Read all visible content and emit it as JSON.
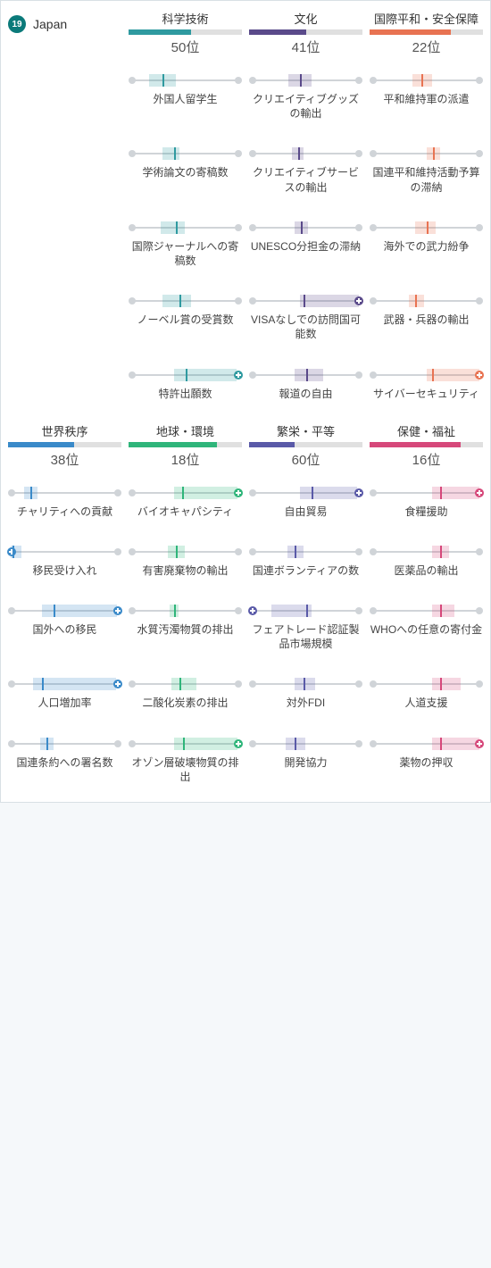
{
  "country": {
    "rank": "19",
    "name": "Japan",
    "badge_color": "#0b7a7a"
  },
  "rank_suffix": "位",
  "track": {
    "line_color": "#d0d4d8",
    "dot_color": "#d0d4d8"
  },
  "layout": {
    "columns": 4,
    "sections": 2
  },
  "categories": [
    {
      "id": "sci",
      "title": "科学技術",
      "rank": "50",
      "color": "#2f9aa0",
      "bar_start": 0.0,
      "bar_end": 0.55
    },
    {
      "id": "cul",
      "title": "文化",
      "rank": "41",
      "color": "#5a4a8a",
      "bar_start": 0.0,
      "bar_end": 0.5
    },
    {
      "id": "peace",
      "title": "国際平和・安全保障",
      "rank": "22",
      "color": "#e87352",
      "bar_start": 0.0,
      "bar_end": 0.72
    },
    {
      "id": "order",
      "title": "世界秩序",
      "rank": "38",
      "color": "#3a8ac9",
      "bar_start": 0.0,
      "bar_end": 0.58
    },
    {
      "id": "planet",
      "title": "地球・環境",
      "rank": "18",
      "color": "#2fb57a",
      "bar_start": 0.0,
      "bar_end": 0.78
    },
    {
      "id": "prosp",
      "title": "繁栄・平等",
      "rank": "60",
      "color": "#5a5aa8",
      "bar_start": 0.0,
      "bar_end": 0.4
    },
    {
      "id": "health",
      "title": "保健・福祉",
      "rank": "16",
      "color": "#d6487a",
      "bar_start": 0.0,
      "bar_end": 0.8
    }
  ],
  "sections": [
    {
      "header_first_cell": "country",
      "header_cats": [
        "sci",
        "cul",
        "peace"
      ],
      "rows": [
        [
          null,
          {
            "cat": "sci",
            "label": "外国人留学生",
            "band": [
              0.18,
              0.42
            ],
            "pos": 0.3
          },
          {
            "cat": "cul",
            "label": "クリエイティブグッズの輸出",
            "band": [
              0.35,
              0.55
            ],
            "pos": 0.45
          },
          {
            "cat": "peace",
            "label": "平和維持軍の派遣",
            "band": [
              0.38,
              0.55
            ],
            "pos": 0.46
          }
        ],
        [
          null,
          {
            "cat": "sci",
            "label": "学術論文の寄稿数",
            "band": [
              0.3,
              0.45
            ],
            "pos": 0.4
          },
          {
            "cat": "cul",
            "label": "クリエイティブサービスの輸出",
            "band": [
              0.38,
              0.48
            ],
            "pos": 0.43
          },
          {
            "cat": "peace",
            "label": "国連平和維持活動予算の滞納",
            "band": [
              0.5,
              0.62
            ],
            "pos": 0.56
          }
        ],
        [
          null,
          {
            "cat": "sci",
            "label": "国際ジャーナルへの寄稿数",
            "band": [
              0.28,
              0.5
            ],
            "pos": 0.42
          },
          {
            "cat": "cul",
            "label": "UNESCO分担金の滞納",
            "band": [
              0.4,
              0.52
            ],
            "pos": 0.46
          },
          {
            "cat": "peace",
            "label": "海外での武力紛争",
            "band": [
              0.4,
              0.58
            ],
            "pos": 0.5
          }
        ],
        [
          null,
          {
            "cat": "sci",
            "label": "ノーベル賞の受賞数",
            "band": [
              0.3,
              0.55
            ],
            "pos": 0.45
          },
          {
            "cat": "cul",
            "label": "VISAなしでの訪問国可能数",
            "band": [
              0.45,
              0.97
            ],
            "pos": 0.48,
            "plus_right": true
          },
          {
            "cat": "peace",
            "label": "武器・兵器の輸出",
            "band": [
              0.35,
              0.48
            ],
            "pos": 0.4
          }
        ],
        [
          null,
          {
            "cat": "sci",
            "label": "特許出願数",
            "band": [
              0.4,
              0.95
            ],
            "pos": 0.5,
            "plus_right": true
          },
          {
            "cat": "cul",
            "label": "報道の自由",
            "band": [
              0.4,
              0.65
            ],
            "pos": 0.5
          },
          {
            "cat": "peace",
            "label": "サイバーセキュリティ",
            "band": [
              0.5,
              0.97
            ],
            "pos": 0.55,
            "plus_right": true
          }
        ]
      ]
    },
    {
      "header_first_cell": "cat",
      "header_cats": [
        "order",
        "planet",
        "prosp",
        "health"
      ],
      "rows": [
        [
          {
            "cat": "order",
            "label": "チャリティへの貢献",
            "band": [
              0.14,
              0.26
            ],
            "pos": 0.2
          },
          {
            "cat": "planet",
            "label": "バイオキャパシティ",
            "band": [
              0.4,
              0.96
            ],
            "pos": 0.47,
            "plus_right": true
          },
          {
            "cat": "prosp",
            "label": "自由貿易",
            "band": [
              0.45,
              0.95
            ],
            "pos": 0.55,
            "plus_right": true
          },
          {
            "cat": "health",
            "label": "食糧援助",
            "band": [
              0.55,
              0.97
            ],
            "pos": 0.62,
            "plus_right": true
          }
        ],
        [
          {
            "cat": "order",
            "label": "移民受け入れ",
            "band": [
              0.02,
              0.12
            ],
            "pos": 0.04,
            "plus_left": true
          },
          {
            "cat": "planet",
            "label": "有害廃棄物の輸出",
            "band": [
              0.35,
              0.5
            ],
            "pos": 0.42
          },
          {
            "cat": "prosp",
            "label": "国連ボランティアの数",
            "band": [
              0.34,
              0.48
            ],
            "pos": 0.4
          },
          {
            "cat": "health",
            "label": "医薬品の輸出",
            "band": [
              0.55,
              0.7
            ],
            "pos": 0.62
          }
        ],
        [
          {
            "cat": "order",
            "label": "国外への移民",
            "band": [
              0.3,
              0.96
            ],
            "pos": 0.4,
            "plus_right": true
          },
          {
            "cat": "planet",
            "label": "水質汚濁物質の排出",
            "band": [
              0.36,
              0.44
            ],
            "pos": 0.4
          },
          {
            "cat": "prosp",
            "label": "フェアトレード認証製品市場規模",
            "band": [
              0.2,
              0.55
            ],
            "pos": 0.5,
            "plus_left": true
          },
          {
            "cat": "health",
            "label": "WHOへの任意の寄付金",
            "band": [
              0.55,
              0.75
            ],
            "pos": 0.62
          }
        ],
        [
          {
            "cat": "order",
            "label": "人口増加率",
            "band": [
              0.22,
              0.95
            ],
            "pos": 0.3,
            "plus_right": true
          },
          {
            "cat": "planet",
            "label": "二酸化炭素の排出",
            "band": [
              0.38,
              0.6
            ],
            "pos": 0.45
          },
          {
            "cat": "prosp",
            "label": "対外FDI",
            "band": [
              0.4,
              0.58
            ],
            "pos": 0.48
          },
          {
            "cat": "health",
            "label": "人道支援",
            "band": [
              0.55,
              0.8
            ],
            "pos": 0.62
          }
        ],
        [
          {
            "cat": "order",
            "label": "国連条約への署名数",
            "band": [
              0.28,
              0.4
            ],
            "pos": 0.34
          },
          {
            "cat": "planet",
            "label": "オゾン層破壊物質の排出",
            "band": [
              0.4,
              0.96
            ],
            "pos": 0.48,
            "plus_right": true
          },
          {
            "cat": "prosp",
            "label": "開発協力",
            "band": [
              0.32,
              0.5
            ],
            "pos": 0.4
          },
          {
            "cat": "health",
            "label": "薬物の押収",
            "band": [
              0.55,
              0.97
            ],
            "pos": 0.62,
            "plus_right": true
          }
        ]
      ]
    }
  ]
}
